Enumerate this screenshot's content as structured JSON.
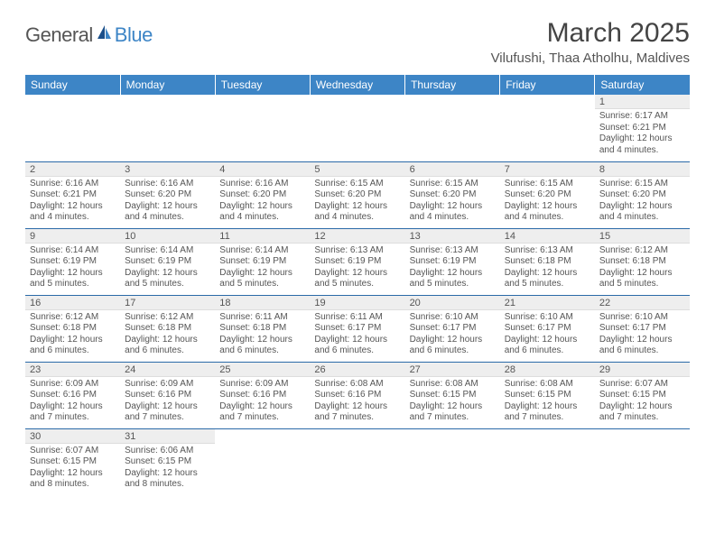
{
  "logo": {
    "text1": "General",
    "text2": "Blue"
  },
  "title": "March 2025",
  "location": "Vilufushi, Thaa Atholhu, Maldives",
  "header_bg": "#3d85c6",
  "day_num_bg": "#eeeeee",
  "row_border": "#2b6aa8",
  "weekdays": [
    "Sunday",
    "Monday",
    "Tuesday",
    "Wednesday",
    "Thursday",
    "Friday",
    "Saturday"
  ],
  "weeks": [
    [
      null,
      null,
      null,
      null,
      null,
      null,
      {
        "n": "1",
        "sunrise": "Sunrise: 6:17 AM",
        "sunset": "Sunset: 6:21 PM",
        "daylight": "Daylight: 12 hours and 4 minutes."
      }
    ],
    [
      {
        "n": "2",
        "sunrise": "Sunrise: 6:16 AM",
        "sunset": "Sunset: 6:21 PM",
        "daylight": "Daylight: 12 hours and 4 minutes."
      },
      {
        "n": "3",
        "sunrise": "Sunrise: 6:16 AM",
        "sunset": "Sunset: 6:20 PM",
        "daylight": "Daylight: 12 hours and 4 minutes."
      },
      {
        "n": "4",
        "sunrise": "Sunrise: 6:16 AM",
        "sunset": "Sunset: 6:20 PM",
        "daylight": "Daylight: 12 hours and 4 minutes."
      },
      {
        "n": "5",
        "sunrise": "Sunrise: 6:15 AM",
        "sunset": "Sunset: 6:20 PM",
        "daylight": "Daylight: 12 hours and 4 minutes."
      },
      {
        "n": "6",
        "sunrise": "Sunrise: 6:15 AM",
        "sunset": "Sunset: 6:20 PM",
        "daylight": "Daylight: 12 hours and 4 minutes."
      },
      {
        "n": "7",
        "sunrise": "Sunrise: 6:15 AM",
        "sunset": "Sunset: 6:20 PM",
        "daylight": "Daylight: 12 hours and 4 minutes."
      },
      {
        "n": "8",
        "sunrise": "Sunrise: 6:15 AM",
        "sunset": "Sunset: 6:20 PM",
        "daylight": "Daylight: 12 hours and 4 minutes."
      }
    ],
    [
      {
        "n": "9",
        "sunrise": "Sunrise: 6:14 AM",
        "sunset": "Sunset: 6:19 PM",
        "daylight": "Daylight: 12 hours and 5 minutes."
      },
      {
        "n": "10",
        "sunrise": "Sunrise: 6:14 AM",
        "sunset": "Sunset: 6:19 PM",
        "daylight": "Daylight: 12 hours and 5 minutes."
      },
      {
        "n": "11",
        "sunrise": "Sunrise: 6:14 AM",
        "sunset": "Sunset: 6:19 PM",
        "daylight": "Daylight: 12 hours and 5 minutes."
      },
      {
        "n": "12",
        "sunrise": "Sunrise: 6:13 AM",
        "sunset": "Sunset: 6:19 PM",
        "daylight": "Daylight: 12 hours and 5 minutes."
      },
      {
        "n": "13",
        "sunrise": "Sunrise: 6:13 AM",
        "sunset": "Sunset: 6:19 PM",
        "daylight": "Daylight: 12 hours and 5 minutes."
      },
      {
        "n": "14",
        "sunrise": "Sunrise: 6:13 AM",
        "sunset": "Sunset: 6:18 PM",
        "daylight": "Daylight: 12 hours and 5 minutes."
      },
      {
        "n": "15",
        "sunrise": "Sunrise: 6:12 AM",
        "sunset": "Sunset: 6:18 PM",
        "daylight": "Daylight: 12 hours and 5 minutes."
      }
    ],
    [
      {
        "n": "16",
        "sunrise": "Sunrise: 6:12 AM",
        "sunset": "Sunset: 6:18 PM",
        "daylight": "Daylight: 12 hours and 6 minutes."
      },
      {
        "n": "17",
        "sunrise": "Sunrise: 6:12 AM",
        "sunset": "Sunset: 6:18 PM",
        "daylight": "Daylight: 12 hours and 6 minutes."
      },
      {
        "n": "18",
        "sunrise": "Sunrise: 6:11 AM",
        "sunset": "Sunset: 6:18 PM",
        "daylight": "Daylight: 12 hours and 6 minutes."
      },
      {
        "n": "19",
        "sunrise": "Sunrise: 6:11 AM",
        "sunset": "Sunset: 6:17 PM",
        "daylight": "Daylight: 12 hours and 6 minutes."
      },
      {
        "n": "20",
        "sunrise": "Sunrise: 6:10 AM",
        "sunset": "Sunset: 6:17 PM",
        "daylight": "Daylight: 12 hours and 6 minutes."
      },
      {
        "n": "21",
        "sunrise": "Sunrise: 6:10 AM",
        "sunset": "Sunset: 6:17 PM",
        "daylight": "Daylight: 12 hours and 6 minutes."
      },
      {
        "n": "22",
        "sunrise": "Sunrise: 6:10 AM",
        "sunset": "Sunset: 6:17 PM",
        "daylight": "Daylight: 12 hours and 6 minutes."
      }
    ],
    [
      {
        "n": "23",
        "sunrise": "Sunrise: 6:09 AM",
        "sunset": "Sunset: 6:16 PM",
        "daylight": "Daylight: 12 hours and 7 minutes."
      },
      {
        "n": "24",
        "sunrise": "Sunrise: 6:09 AM",
        "sunset": "Sunset: 6:16 PM",
        "daylight": "Daylight: 12 hours and 7 minutes."
      },
      {
        "n": "25",
        "sunrise": "Sunrise: 6:09 AM",
        "sunset": "Sunset: 6:16 PM",
        "daylight": "Daylight: 12 hours and 7 minutes."
      },
      {
        "n": "26",
        "sunrise": "Sunrise: 6:08 AM",
        "sunset": "Sunset: 6:16 PM",
        "daylight": "Daylight: 12 hours and 7 minutes."
      },
      {
        "n": "27",
        "sunrise": "Sunrise: 6:08 AM",
        "sunset": "Sunset: 6:15 PM",
        "daylight": "Daylight: 12 hours and 7 minutes."
      },
      {
        "n": "28",
        "sunrise": "Sunrise: 6:08 AM",
        "sunset": "Sunset: 6:15 PM",
        "daylight": "Daylight: 12 hours and 7 minutes."
      },
      {
        "n": "29",
        "sunrise": "Sunrise: 6:07 AM",
        "sunset": "Sunset: 6:15 PM",
        "daylight": "Daylight: 12 hours and 7 minutes."
      }
    ],
    [
      {
        "n": "30",
        "sunrise": "Sunrise: 6:07 AM",
        "sunset": "Sunset: 6:15 PM",
        "daylight": "Daylight: 12 hours and 8 minutes."
      },
      {
        "n": "31",
        "sunrise": "Sunrise: 6:06 AM",
        "sunset": "Sunset: 6:15 PM",
        "daylight": "Daylight: 12 hours and 8 minutes."
      },
      null,
      null,
      null,
      null,
      null
    ]
  ]
}
